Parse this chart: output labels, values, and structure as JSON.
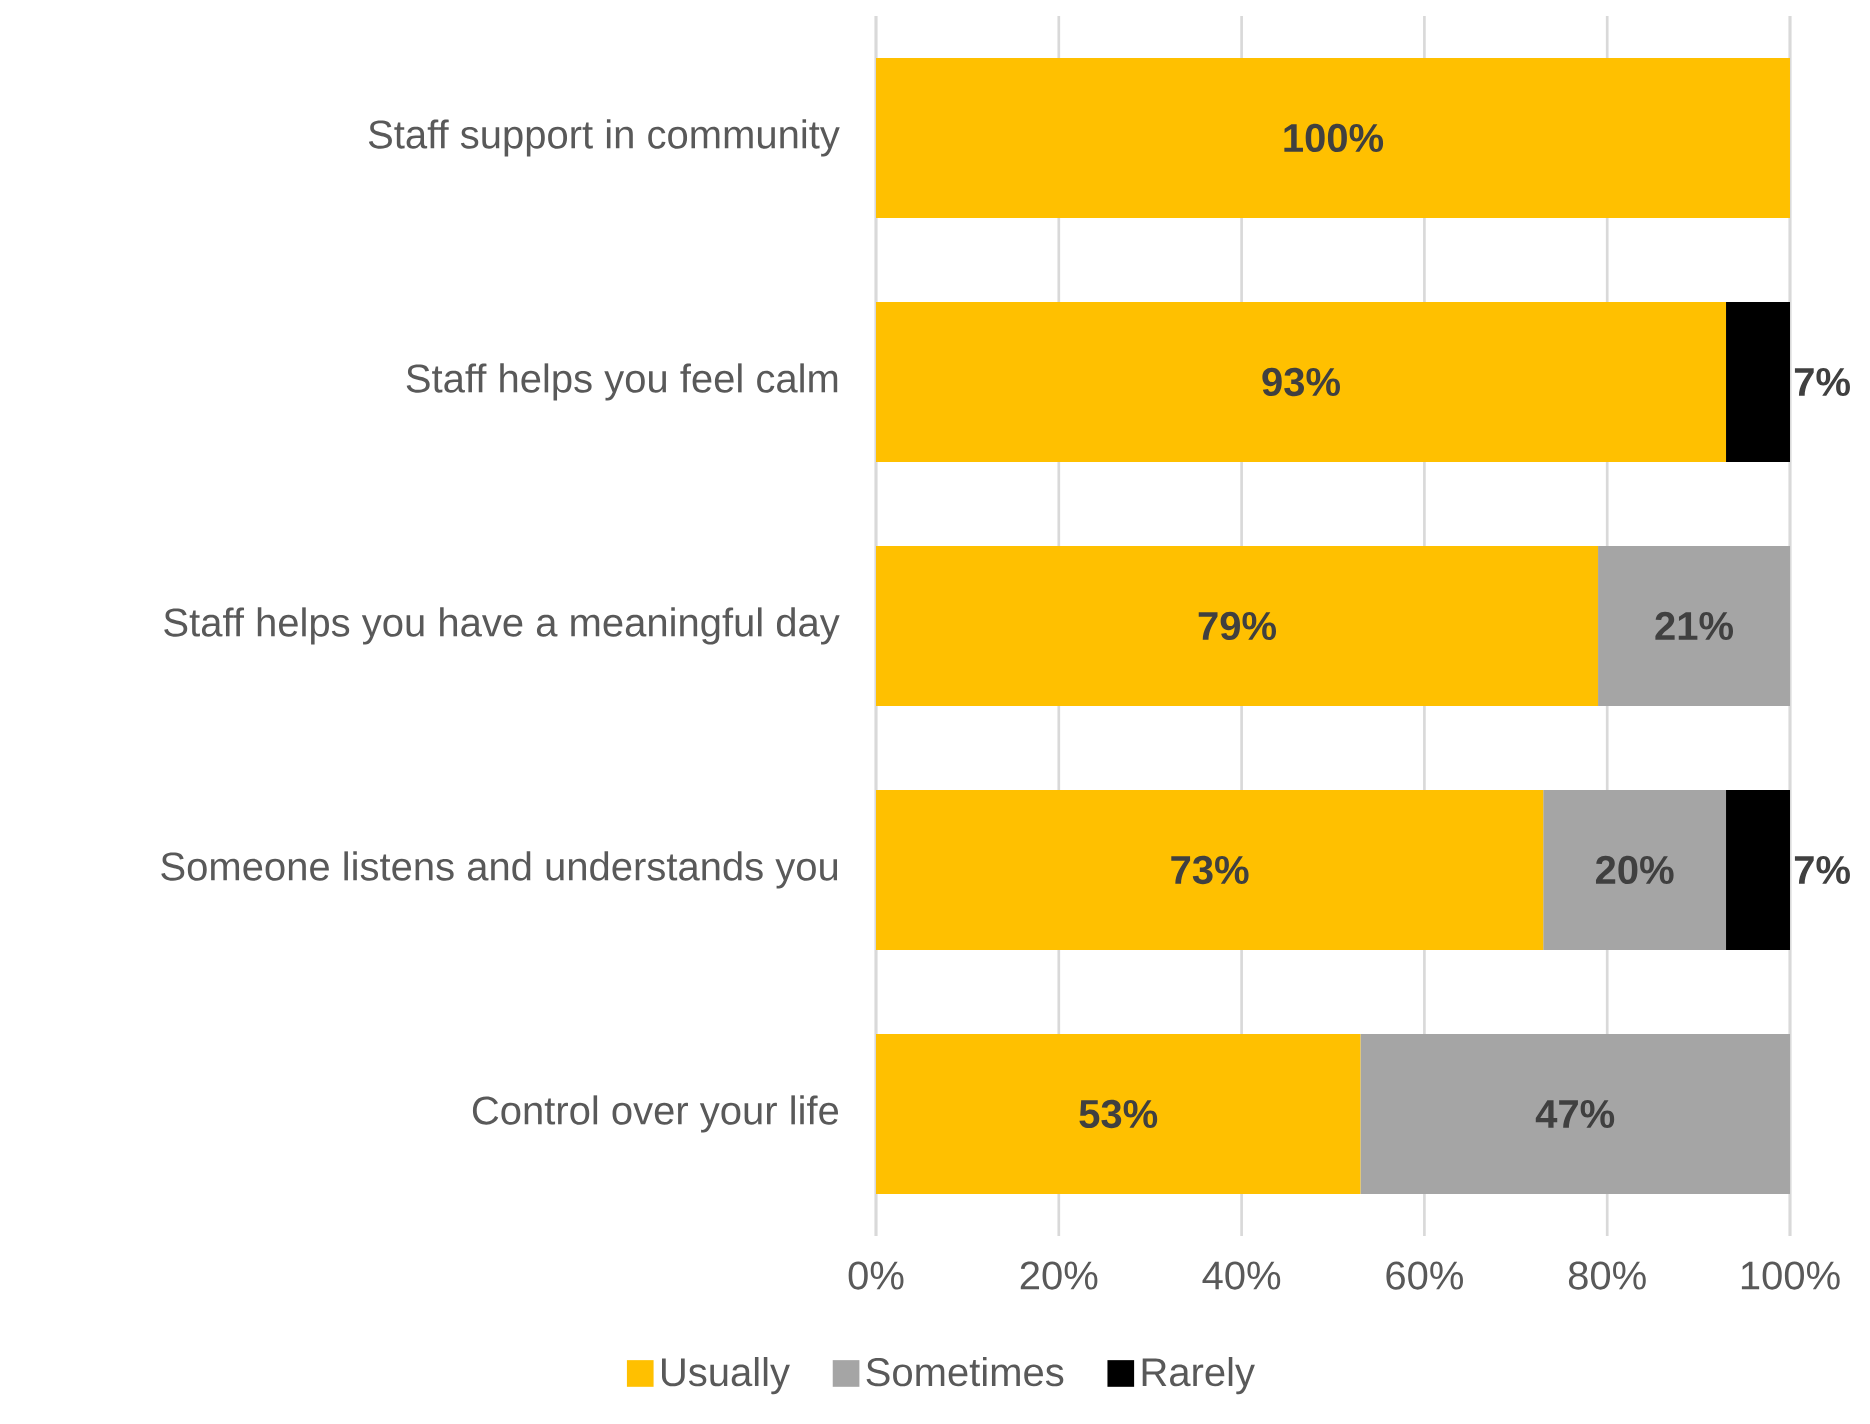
{
  "chart_data": {
    "type": "bar",
    "orientation": "horizontal",
    "stacked": true,
    "categories": [
      "Staff support in community",
      "Staff helps you feel calm",
      "Staff helps you have a meaningful day",
      "Someone listens and understands you",
      "Control over your life"
    ],
    "series": [
      {
        "name": "Usually",
        "color": "#ffc000",
        "values": [
          100,
          93,
          79,
          73,
          53
        ],
        "value_labels": [
          "100%",
          "93%",
          "79%",
          "73%",
          "53%"
        ]
      },
      {
        "name": "Sometimes",
        "color": "#a5a5a5",
        "values": [
          null,
          null,
          21,
          20,
          47
        ],
        "value_labels": [
          null,
          null,
          "21%",
          "20%",
          "47%"
        ]
      },
      {
        "name": "Rarely",
        "color": "#000000",
        "values": [
          null,
          7,
          null,
          7,
          null
        ],
        "value_labels": [
          null,
          "7%",
          null,
          "7%",
          null
        ]
      }
    ],
    "xlim": [
      0,
      100
    ],
    "xticks": [
      {
        "value": 0,
        "label": "0%"
      },
      {
        "value": 20,
        "label": "20%"
      },
      {
        "value": 40,
        "label": "40%"
      },
      {
        "value": 60,
        "label": "60%"
      },
      {
        "value": 80,
        "label": "80%"
      },
      {
        "value": 100,
        "label": "100%"
      }
    ],
    "grid": "x",
    "legend": "bottom"
  }
}
